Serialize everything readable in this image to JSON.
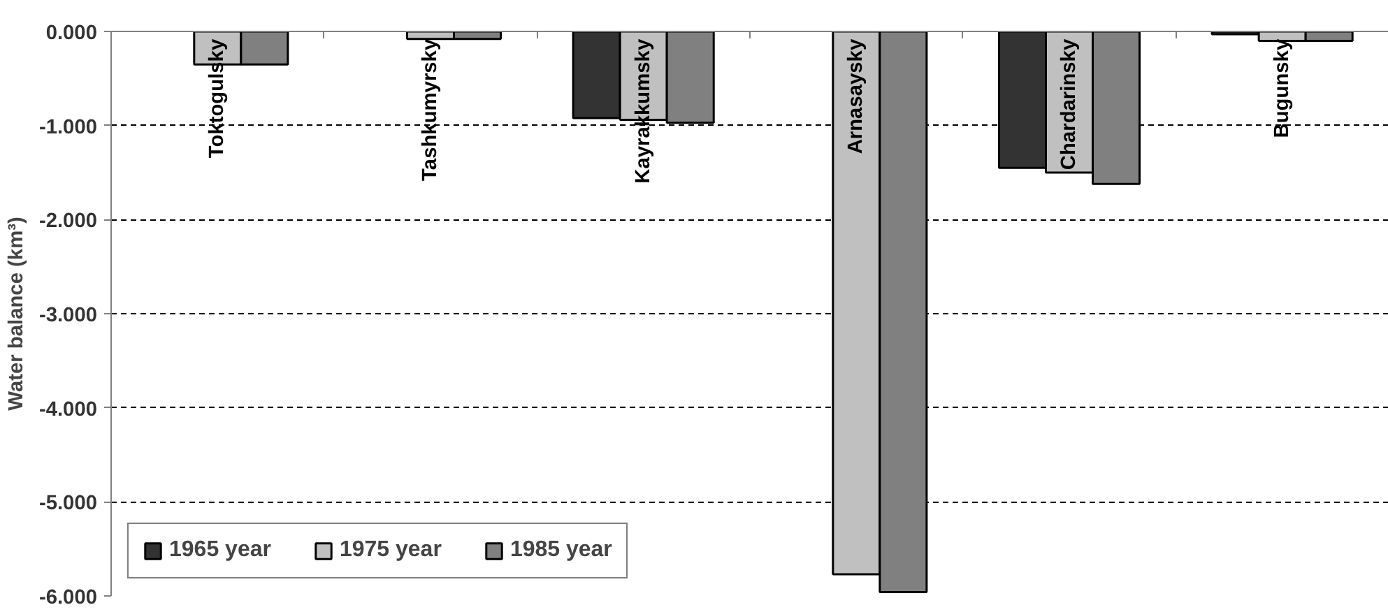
{
  "chart_data": {
    "type": "bar",
    "ylabel": "Water balance (km³)",
    "categories": [
      "Toktogulsky",
      "Tashkumyrsky",
      "Kayrakkumsky",
      "Arnasaysky",
      "Chardarinsky",
      "Bugunsky"
    ],
    "series": [
      {
        "name": "1965 year",
        "color": "#333333",
        "values": [
          null,
          null,
          -0.92,
          null,
          -1.45,
          -0.03
        ]
      },
      {
        "name": "1975 year",
        "color": "#c0c0c0",
        "values": [
          -0.35,
          -0.08,
          -0.94,
          -5.77,
          -1.5,
          -0.1
        ]
      },
      {
        "name": "1985 year",
        "color": "#808080",
        "values": [
          -0.35,
          -0.08,
          -0.97,
          -5.96,
          -1.62,
          -0.1
        ]
      }
    ],
    "ylim": [
      -6,
      0
    ],
    "yticks": [
      {
        "value": 0,
        "label": "0.000"
      },
      {
        "value": -1,
        "label": "-1.000"
      },
      {
        "value": -2,
        "label": "-2.000"
      },
      {
        "value": -3,
        "label": "-3.000"
      },
      {
        "value": -4,
        "label": "-4.000"
      },
      {
        "value": -5,
        "label": "-5.000"
      },
      {
        "value": -6,
        "label": "-6.000"
      }
    ],
    "grid": "y",
    "legend": "bottom left"
  }
}
